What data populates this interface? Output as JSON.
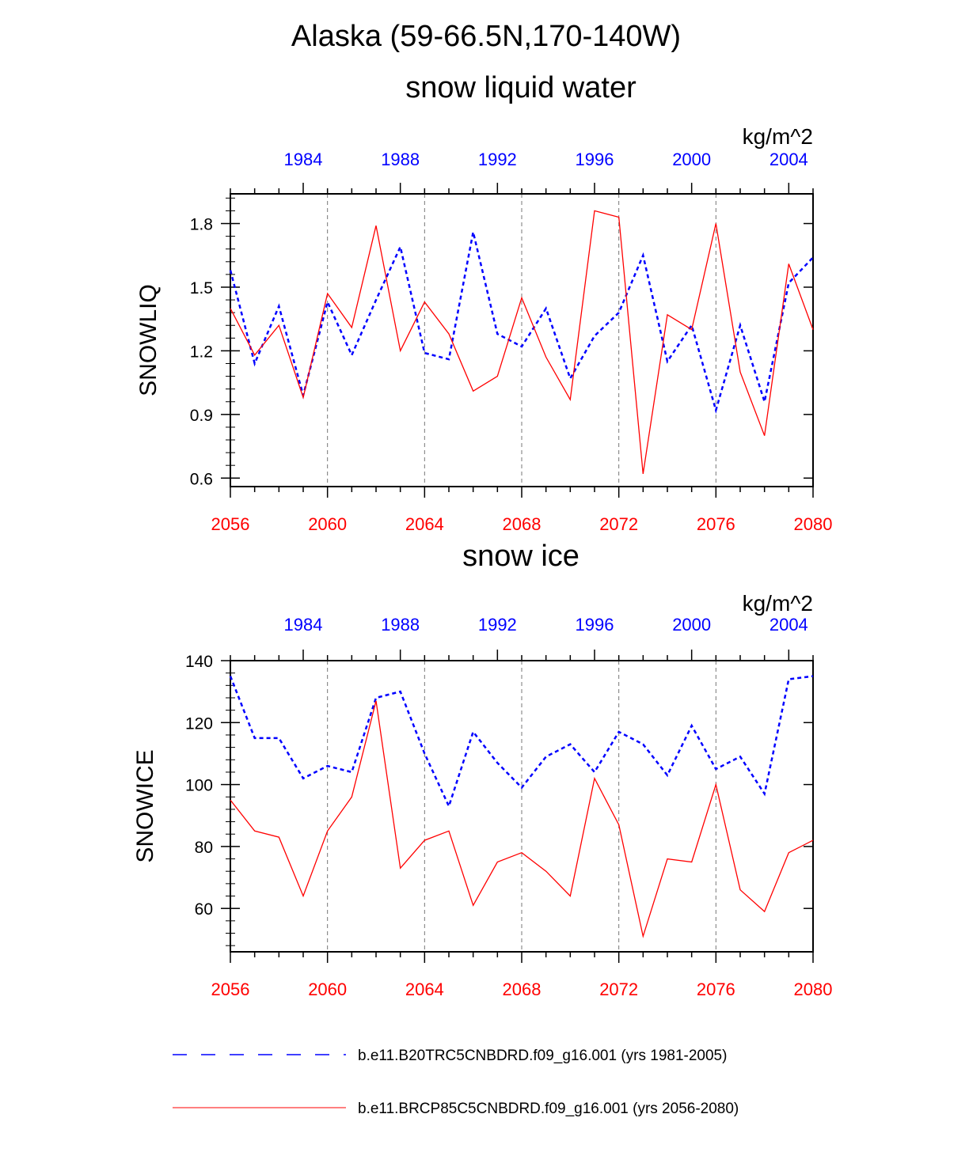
{
  "title": "Alaska (59-66.5N,170-140W)",
  "legend": {
    "entries": [
      {
        "label": "b.e11.B20TRC5CNBDRD.f09_g16.001 (yrs 1981-2005)",
        "color": "#0000ff",
        "style": "dashed"
      },
      {
        "label": "b.e11.BRCP85C5CNBDRD.f09_g16.001 (yrs 2056-2080)",
        "color": "#ff0000",
        "style": "solid"
      }
    ]
  },
  "chart_data": [
    {
      "type": "line",
      "title": "snow liquid water",
      "units": "kg/m^2",
      "ylabel": "SNOWLIQ",
      "ylim": [
        0.56,
        1.94
      ],
      "yticks": [
        0.6,
        0.9,
        1.2,
        1.5,
        1.8
      ],
      "ytick_labels": [
        "0.6",
        "0.9",
        "1.2",
        "1.5",
        "1.8"
      ],
      "x_bottom": {
        "range": [
          2056,
          2080
        ],
        "ticks": [
          2056,
          2060,
          2064,
          2068,
          2072,
          2076,
          2080
        ],
        "color": "#ff0000"
      },
      "x_top": {
        "range": [
          1981,
          2005
        ],
        "ticks": [
          1984,
          1988,
          1992,
          1996,
          2000,
          2004
        ],
        "color": "#0000ff"
      },
      "grid_x": [
        2060,
        2064,
        2068,
        2072,
        2076
      ],
      "series": [
        {
          "name": "b.e11.B20TRC5CNBDRD.f09_g16.001 (yrs 1981-2005)",
          "axis": "top",
          "x": [
            1981,
            1982,
            1983,
            1984,
            1985,
            1986,
            1987,
            1988,
            1989,
            1990,
            1991,
            1992,
            1993,
            1994,
            1995,
            1996,
            1997,
            1998,
            1999,
            2000,
            2001,
            2002,
            2003,
            2004,
            2005
          ],
          "values": [
            1.58,
            1.14,
            1.41,
            0.99,
            1.43,
            1.18,
            1.44,
            1.69,
            1.19,
            1.16,
            1.76,
            1.28,
            1.22,
            1.4,
            1.07,
            1.27,
            1.38,
            1.65,
            1.15,
            1.32,
            0.92,
            1.32,
            0.96,
            1.52,
            1.64
          ]
        },
        {
          "name": "b.e11.BRCP85C5CNBDRD.f09_g16.001 (yrs 2056-2080)",
          "axis": "bottom",
          "x": [
            2056,
            2057,
            2058,
            2059,
            2060,
            2061,
            2062,
            2063,
            2064,
            2065,
            2066,
            2067,
            2068,
            2069,
            2070,
            2071,
            2072,
            2073,
            2074,
            2075,
            2076,
            2077,
            2078,
            2079,
            2080
          ],
          "values": [
            1.4,
            1.18,
            1.32,
            0.98,
            1.47,
            1.31,
            1.79,
            1.2,
            1.43,
            1.28,
            1.01,
            1.08,
            1.45,
            1.17,
            0.97,
            1.86,
            1.83,
            0.62,
            1.37,
            1.3,
            1.8,
            1.1,
            0.8,
            1.61,
            1.3
          ]
        }
      ]
    },
    {
      "type": "line",
      "title": "snow ice",
      "units": "kg/m^2",
      "ylabel": "SNOWICE",
      "ylim": [
        46,
        140
      ],
      "yticks": [
        60,
        80,
        100,
        120,
        140
      ],
      "ytick_labels": [
        "60",
        "80",
        "100",
        "120",
        "140"
      ],
      "x_bottom": {
        "range": [
          2056,
          2080
        ],
        "ticks": [
          2056,
          2060,
          2064,
          2068,
          2072,
          2076,
          2080
        ],
        "color": "#ff0000"
      },
      "x_top": {
        "range": [
          1981,
          2005
        ],
        "ticks": [
          1984,
          1988,
          1992,
          1996,
          2000,
          2004
        ],
        "color": "#0000ff"
      },
      "grid_x": [
        2060,
        2064,
        2068,
        2072,
        2076
      ],
      "series": [
        {
          "name": "b.e11.B20TRC5CNBDRD.f09_g16.001 (yrs 1981-2005)",
          "axis": "top",
          "x": [
            1981,
            1982,
            1983,
            1984,
            1985,
            1986,
            1987,
            1988,
            1989,
            1990,
            1991,
            1992,
            1993,
            1994,
            1995,
            1996,
            1997,
            1998,
            1999,
            2000,
            2001,
            2002,
            2003,
            2004,
            2005
          ],
          "values": [
            135,
            115,
            115,
            102,
            106,
            104,
            128,
            130,
            110,
            93,
            117,
            107,
            99,
            109,
            113,
            104,
            117,
            113,
            103,
            119,
            105,
            109,
            97,
            134,
            135
          ]
        },
        {
          "name": "b.e11.BRCP85C5CNBDRD.f09_g16.001 (yrs 2056-2080)",
          "axis": "bottom",
          "x": [
            2056,
            2057,
            2058,
            2059,
            2060,
            2061,
            2062,
            2063,
            2064,
            2065,
            2066,
            2067,
            2068,
            2069,
            2070,
            2071,
            2072,
            2073,
            2074,
            2075,
            2076,
            2077,
            2078,
            2079,
            2080
          ],
          "values": [
            95,
            85,
            83,
            64,
            85,
            96,
            127,
            73,
            82,
            85,
            61,
            75,
            78,
            72,
            64,
            102,
            87,
            51,
            76,
            75,
            100,
            66,
            59,
            78,
            82
          ]
        }
      ]
    }
  ]
}
